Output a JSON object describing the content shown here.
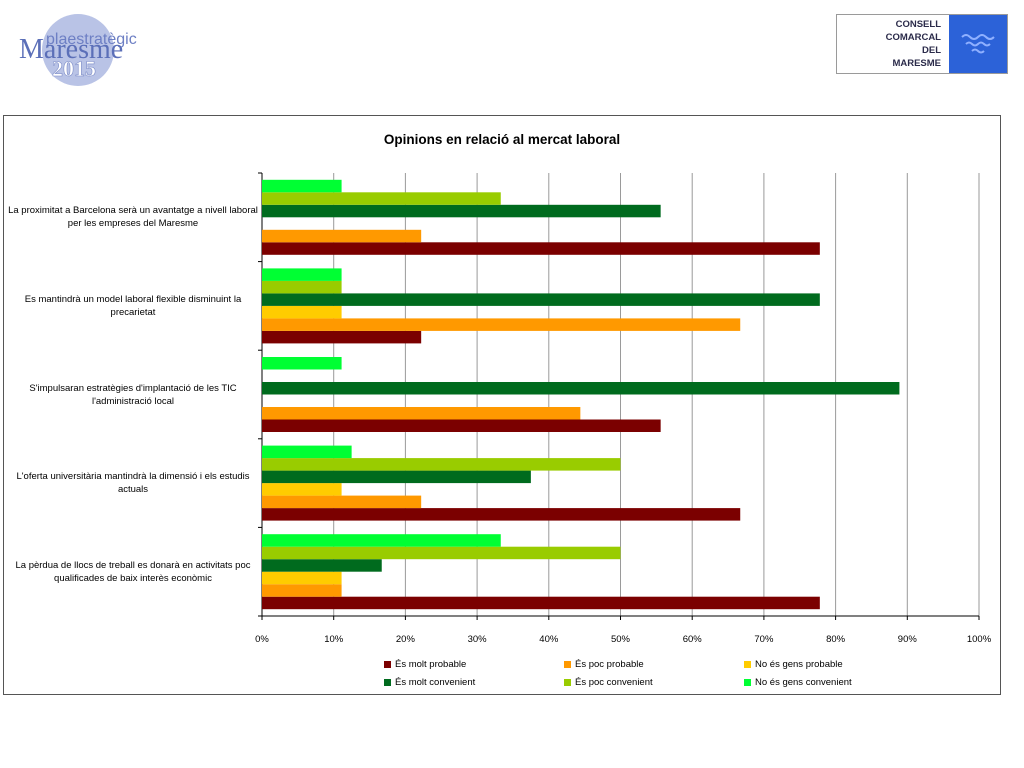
{
  "header": {
    "logo_left": {
      "line1": "plaestratègic",
      "line2": "Maresme",
      "line3": "2015"
    },
    "logo_right": {
      "lines": [
        "CONSELL",
        "COMARCAL",
        "DEL",
        "MARESME"
      ]
    }
  },
  "colors": {
    "molt_probable": "#7b0000",
    "poc_probable": "#ff9900",
    "gens_probable": "#ffcc00",
    "molt_convenient": "#006b1e",
    "poc_convenient": "#99cc00",
    "gens_convenient": "#00ff33"
  },
  "chart_data": {
    "type": "bar",
    "orientation": "horizontal",
    "title": "Opinions en relació al mercat laboral",
    "categories": [
      "La proximitat a Barcelona serà un avantatge a nivell laboral per les empreses del Maresme",
      "Es mantindrà un model laboral flexible disminuint la precarietat",
      "S'impulsaran estratègies d'implantació de les TIC l'administració local",
      "L'oferta universitària mantindrà la dimensió i els estudis actuals",
      "La pèrdua de llocs de treball es donarà en activitats poc qualificades de baix interès econòmic"
    ],
    "series": [
      {
        "name": "És molt probable",
        "values": [
          77.8,
          22.2,
          55.6,
          66.7,
          77.8
        ]
      },
      {
        "name": "És poc probable",
        "values": [
          22.2,
          66.7,
          44.4,
          22.2,
          11.1
        ]
      },
      {
        "name": "No és gens probable",
        "values": [
          0,
          11.1,
          0,
          11.1,
          11.1
        ]
      },
      {
        "name": "És molt convenient",
        "values": [
          55.6,
          77.8,
          88.9,
          37.5,
          16.7
        ]
      },
      {
        "name": "És poc convenient",
        "values": [
          33.3,
          11.1,
          0,
          50.0,
          50.0
        ]
      },
      {
        "name": "No és gens convenient",
        "values": [
          11.1,
          11.1,
          11.1,
          12.5,
          33.3
        ]
      }
    ],
    "xlim": [
      0,
      100
    ],
    "x_ticks": [
      "0%",
      "10%",
      "20%",
      "30%",
      "40%",
      "50%",
      "60%",
      "70%",
      "80%",
      "90%",
      "100%"
    ],
    "grid": true,
    "legend_position": "bottom"
  }
}
